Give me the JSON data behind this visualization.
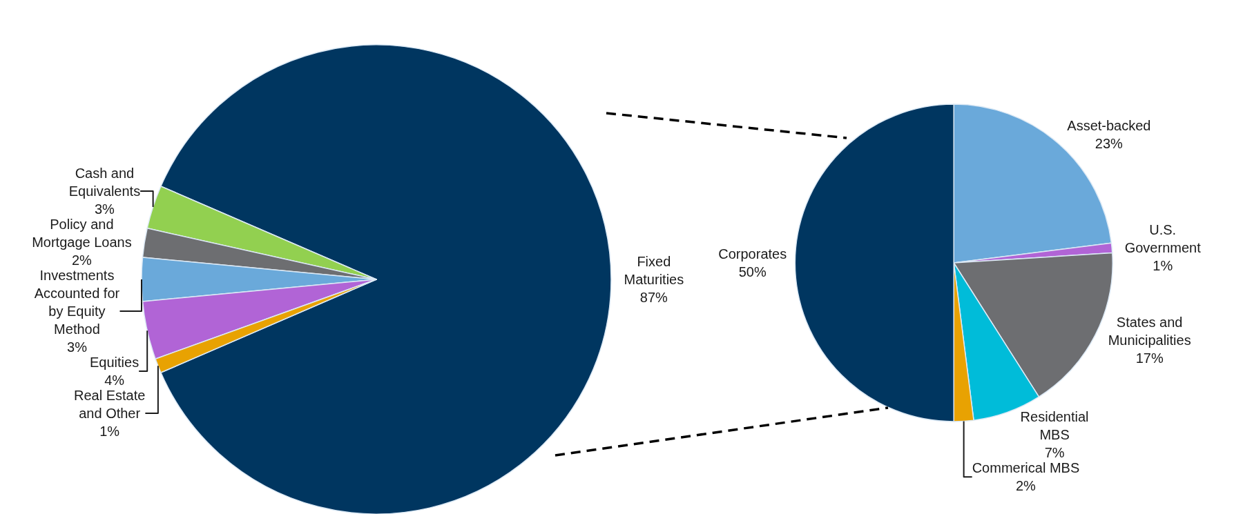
{
  "chart_data": [
    {
      "type": "pie",
      "categories": [
        "Fixed Maturities",
        "Cash and Equivalents",
        "Policy and Mortgage Loans",
        "Investments Accounted for by Equity Method",
        "Equities",
        "Real Estate and Other"
      ],
      "values": [
        87,
        3,
        2,
        3,
        4,
        1
      ],
      "value_labels": [
        "87%",
        "3%",
        "2%",
        "3%",
        "4%",
        "1%"
      ],
      "colors": [
        "#003660",
        "#92d050",
        "#6d6e71",
        "#6aa9da",
        "#b164d6",
        "#e8a202"
      ]
    },
    {
      "type": "pie",
      "categories": [
        "Asset-backed",
        "U.S. Government",
        "States and Municipalities",
        "Residential MBS",
        "Commerical MBS",
        "Corporates"
      ],
      "values": [
        23,
        1,
        17,
        7,
        2,
        50
      ],
      "value_labels": [
        "23%",
        "1%",
        "17%",
        "7%",
        "2%",
        "50%"
      ],
      "colors": [
        "#6aa9da",
        "#b164d6",
        "#6d6e71",
        "#00bcd9",
        "#e8a202",
        "#003660"
      ]
    }
  ]
}
